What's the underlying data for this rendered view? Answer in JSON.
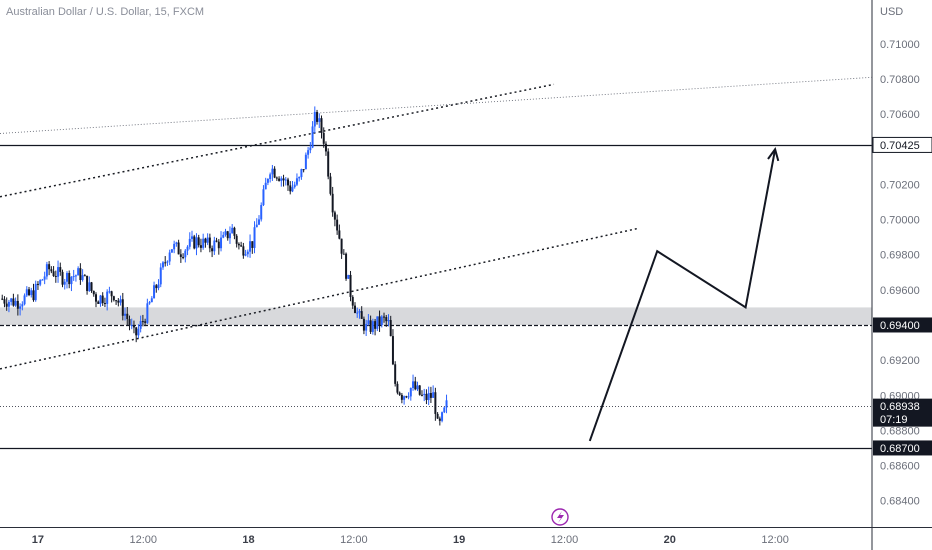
{
  "chart_data": {
    "type": "candlestick",
    "title": "Australian Dollar / U.S. Dollar, 15, FXCM",
    "currency": "USD",
    "y_ticks": [
      "0.71000",
      "0.70800",
      "0.70600",
      "0.70200",
      "0.70000",
      "0.69800",
      "0.69600",
      "0.69200",
      "0.69000",
      "0.68800",
      "0.68600",
      "0.68400"
    ],
    "ylim": [
      0.6825,
      0.7125
    ],
    "x_ticks": [
      {
        "label": "17",
        "t": 0.5,
        "bold": true
      },
      {
        "label": "12:00",
        "t": 1.0,
        "bold": false
      },
      {
        "label": "18",
        "t": 1.5,
        "bold": true
      },
      {
        "label": "12:00",
        "t": 2.0,
        "bold": false
      },
      {
        "label": "19",
        "t": 2.5,
        "bold": true
      },
      {
        "label": "12:00",
        "t": 3.0,
        "bold": false
      },
      {
        "label": "20",
        "t": 3.5,
        "bold": true
      },
      {
        "label": "12:00",
        "t": 4.0,
        "bold": false
      }
    ],
    "xlim": [
      0.32,
      4.46
    ],
    "price_path": [
      [
        0.32,
        0.6955
      ],
      [
        0.4,
        0.6953
      ],
      [
        0.48,
        0.6958
      ],
      [
        0.55,
        0.6972
      ],
      [
        0.62,
        0.6967
      ],
      [
        0.7,
        0.6969
      ],
      [
        0.78,
        0.6955
      ],
      [
        0.86,
        0.6958
      ],
      [
        0.92,
        0.6945
      ],
      [
        0.96,
        0.6933
      ],
      [
        1.02,
        0.6948
      ],
      [
        1.08,
        0.6968
      ],
      [
        1.13,
        0.6985
      ],
      [
        1.18,
        0.6982
      ],
      [
        1.25,
        0.6988
      ],
      [
        1.32,
        0.6985
      ],
      [
        1.38,
        0.6988
      ],
      [
        1.42,
        0.6995
      ],
      [
        1.46,
        0.6983
      ],
      [
        1.52,
        0.6987
      ],
      [
        1.56,
        0.7007
      ],
      [
        1.6,
        0.703
      ],
      [
        1.65,
        0.7025
      ],
      [
        1.7,
        0.7018
      ],
      [
        1.74,
        0.7022
      ],
      [
        1.78,
        0.7038
      ],
      [
        1.82,
        0.706
      ],
      [
        1.86,
        0.7045
      ],
      [
        1.9,
        0.7008
      ],
      [
        1.94,
        0.6985
      ],
      [
        1.98,
        0.696
      ],
      [
        2.02,
        0.6945
      ],
      [
        2.06,
        0.6938
      ],
      [
        2.1,
        0.694
      ],
      [
        2.14,
        0.6943
      ],
      [
        2.17,
        0.694
      ],
      [
        2.19,
        0.6908
      ],
      [
        2.23,
        0.69
      ],
      [
        2.28,
        0.6905
      ],
      [
        2.33,
        0.6898
      ],
      [
        2.38,
        0.69
      ],
      [
        2.4,
        0.688
      ],
      [
        2.44,
        0.6894
      ]
    ],
    "levels": [
      {
        "label": "0.70425",
        "value": 0.70425,
        "style": "solid",
        "tag": "outline"
      },
      {
        "label": "0.69400",
        "value": 0.694,
        "style": "dashed",
        "tag": "dark"
      },
      {
        "label": "0.68700",
        "value": 0.687,
        "style": "solid",
        "tag": "dark"
      },
      {
        "label": "0.68938",
        "value": 0.68938,
        "style": "dotted",
        "tag": "dark",
        "sub": "07:19"
      }
    ],
    "zone": {
      "from": 0.694,
      "to": 0.695,
      "color": "#d8d9dc"
    },
    "trendlines": [
      {
        "p1": [
          0.32,
          0.7013
        ],
        "p2": [
          2.95,
          0.7077
        ],
        "style": "dotted-bold"
      },
      {
        "p1": [
          0.32,
          0.7049
        ],
        "p2": [
          4.46,
          0.7081
        ],
        "style": "dotted-fine"
      },
      {
        "p1": [
          0.32,
          0.6915
        ],
        "p2": [
          3.35,
          0.6995
        ],
        "style": "dotted-bold"
      }
    ],
    "projection": [
      [
        3.12,
        0.6874
      ],
      [
        3.44,
        0.6982
      ],
      [
        3.86,
        0.695
      ],
      [
        4.0,
        0.704
      ]
    ],
    "colors": {
      "up": "#2962ff",
      "down": "#131722",
      "grid": "#e6e7ea",
      "axis": "#2a2e39"
    }
  }
}
